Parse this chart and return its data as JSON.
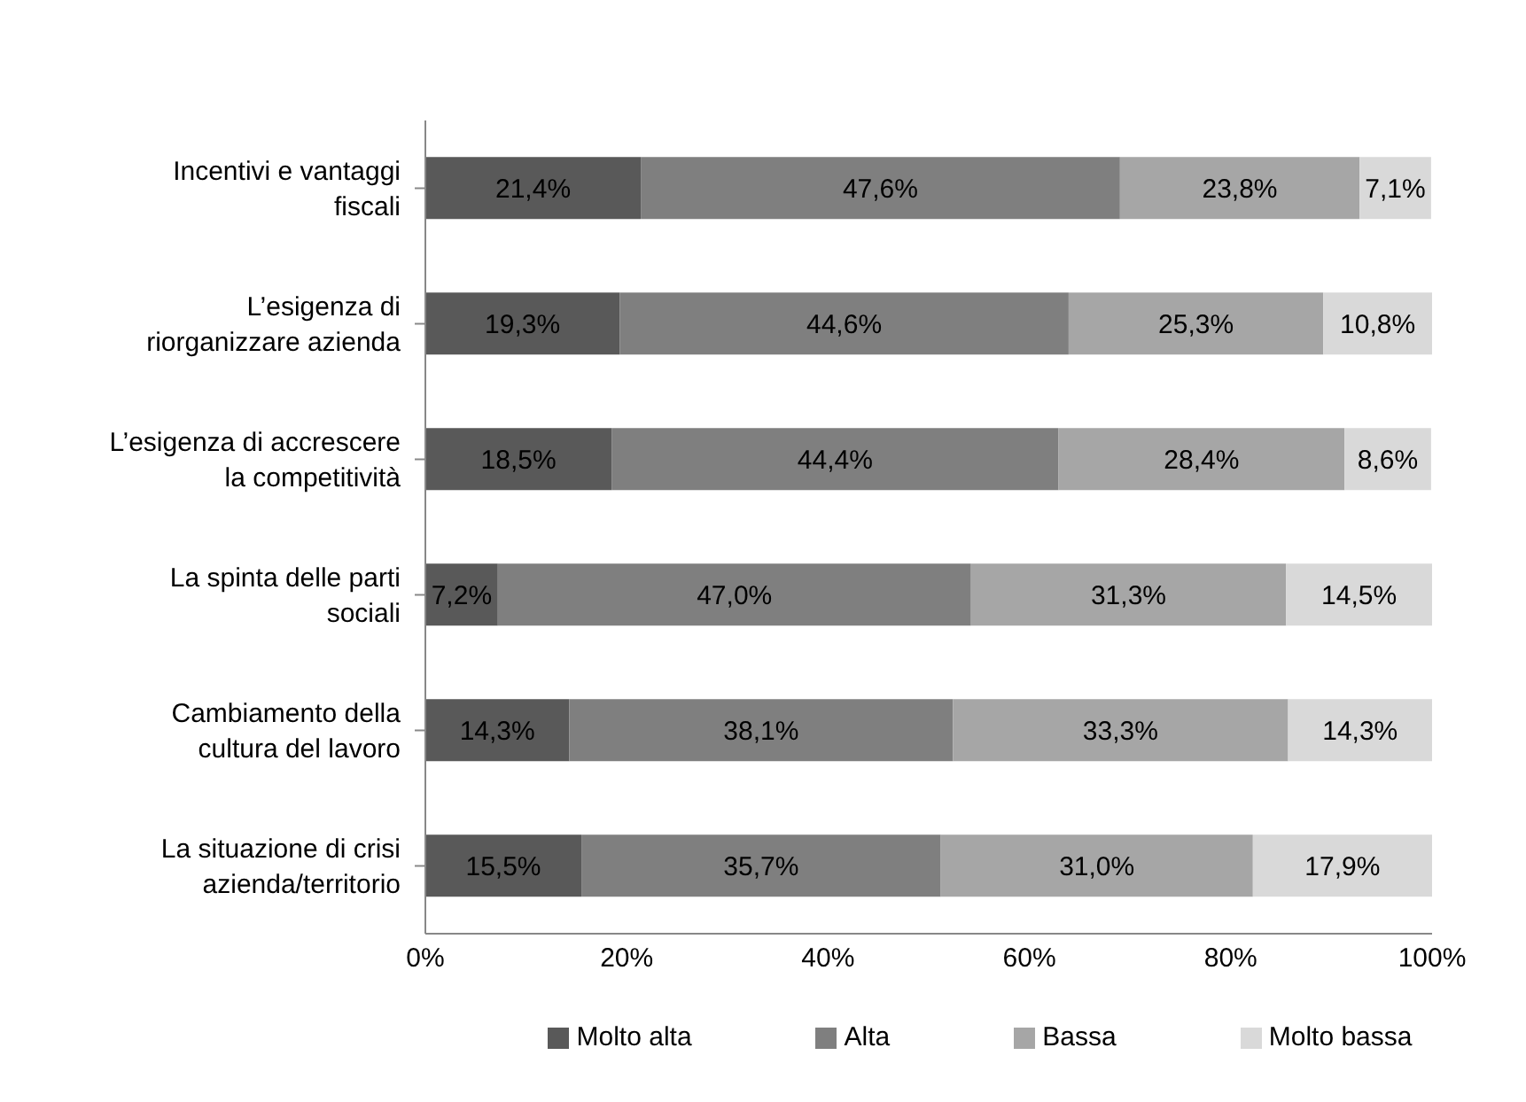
{
  "chart_data": {
    "type": "bar",
    "orientation": "horizontal",
    "stacked": true,
    "categories": [
      "Incentivi e vantaggi fiscali",
      "L’esigenza di riorganizzare azienda",
      "L’esigenza di accrescere la competitività",
      "La spinta delle parti sociali",
      "Cambiamento della cultura del lavoro",
      "La situazione di crisi azienda/territorio"
    ],
    "series": [
      {
        "name": "Molto alta",
        "color": "#595959",
        "values": [
          21.4,
          19.3,
          18.5,
          7.2,
          14.3,
          15.5
        ],
        "value_labels": [
          "21,4%",
          "19,3%",
          "18,5%",
          "7,2%",
          "14,3%",
          "15,5%"
        ]
      },
      {
        "name": "Alta",
        "color": "#7f7f7f",
        "values": [
          47.6,
          44.6,
          44.4,
          47.0,
          38.1,
          35.7
        ],
        "value_labels": [
          "47,6%",
          "44,6%",
          "44,4%",
          "47,0%",
          "38,1%",
          "35,7%"
        ]
      },
      {
        "name": "Bassa",
        "color": "#a6a6a6",
        "values": [
          23.8,
          25.3,
          28.4,
          31.3,
          33.3,
          31.0
        ],
        "value_labels": [
          "23,8%",
          "25,3%",
          "28,4%",
          "31,3%",
          "33,3%",
          "31,0%"
        ]
      },
      {
        "name": "Molto bassa",
        "color": "#d9d9d9",
        "values": [
          7.1,
          10.8,
          8.6,
          14.5,
          14.3,
          17.9
        ],
        "value_labels": [
          "7,1%",
          "10,8%",
          "8,6%",
          "14,5%",
          "14,3%",
          "17,9%"
        ]
      }
    ],
    "xlim": [
      0,
      100
    ],
    "xticks": [
      {
        "value": 0,
        "label": "0%"
      },
      {
        "value": 20,
        "label": "20%"
      },
      {
        "value": 40,
        "label": "40%"
      },
      {
        "value": 60,
        "label": "60%"
      },
      {
        "value": 80,
        "label": "80%"
      },
      {
        "value": 100,
        "label": "100%"
      }
    ],
    "grid": false,
    "legend": "bottom"
  }
}
